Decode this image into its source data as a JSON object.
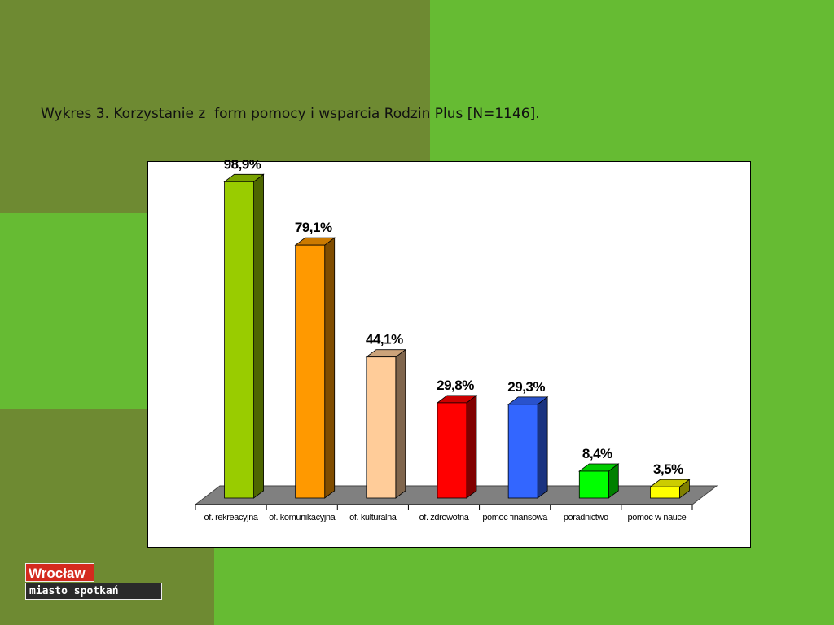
{
  "chart_data": {
    "type": "bar3d",
    "title": "Wykres 3. Korzystanie z  form pomocy i wsparcia Rodzin Plus [N=1146].",
    "categories": [
      "of. rekreacyjna",
      "of. komunikacyjna",
      "of. kulturalna",
      "of. zdrowotna",
      "pomoc finansowa",
      "poradnictwo",
      "pomoc w nauce"
    ],
    "values": [
      98.9,
      79.1,
      44.1,
      29.8,
      29.3,
      8.4,
      3.5
    ],
    "value_labels": [
      "98,9%",
      "79,1%",
      "44,1%",
      "29,8%",
      "29,3%",
      "8,4%",
      "3,5%"
    ],
    "colors": [
      "#99cc00",
      "#ff9900",
      "#ffcc99",
      "#ff0000",
      "#3366ff",
      "#00ff00",
      "#ffff00"
    ],
    "ylim": [
      0,
      100
    ]
  },
  "logo": {
    "name": "Wrocław",
    "tagline": "miasto spotkań"
  }
}
